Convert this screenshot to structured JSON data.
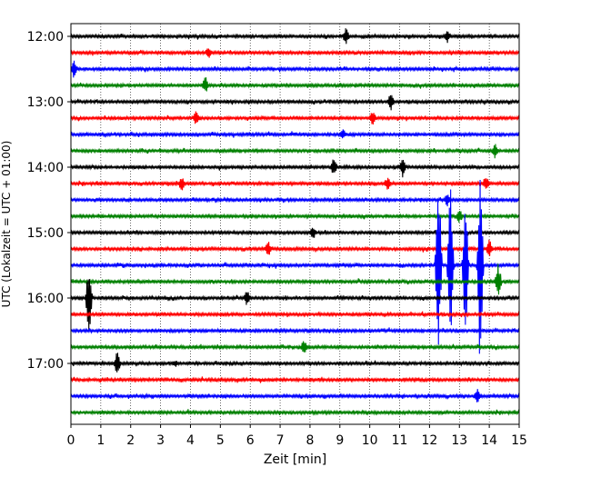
{
  "chart_data": {
    "type": "helicorder",
    "xlabel": "Zeit  [min]",
    "ylabel": "UTC (Lokalzeit = UTC + 01:00)",
    "xlim": [
      0,
      15
    ],
    "x_ticks": [
      "0",
      "1",
      "2",
      "3",
      "4",
      "5",
      "6",
      "7",
      "8",
      "9",
      "10",
      "11",
      "12",
      "13",
      "14",
      "15"
    ],
    "y_ticks": [
      "12:00",
      "13:00",
      "14:00",
      "15:00",
      "16:00",
      "17:00"
    ],
    "trace_start_time": "12:00",
    "trace_interval_min": 15,
    "x_grid": "dotted",
    "trace_colors": [
      "#000000",
      "#ff0000",
      "#0000ff",
      "#008000"
    ],
    "series": [
      {
        "start": "12:00",
        "color": "#000000",
        "events": [
          {
            "x": 9.2,
            "amp": 0.5
          },
          {
            "x": 12.6,
            "amp": 0.35
          }
        ]
      },
      {
        "start": "12:15",
        "color": "#ff0000",
        "events": [
          {
            "x": 4.6,
            "amp": 0.35
          }
        ]
      },
      {
        "start": "12:30",
        "color": "#0000ff",
        "events": [
          {
            "x": 0.1,
            "amp": 0.6
          }
        ]
      },
      {
        "start": "12:45",
        "color": "#008000",
        "events": [
          {
            "x": 4.5,
            "amp": 0.5
          }
        ]
      },
      {
        "start": "13:00",
        "color": "#000000",
        "events": [
          {
            "x": 10.7,
            "amp": 0.55
          }
        ]
      },
      {
        "start": "13:15",
        "color": "#ff0000",
        "events": [
          {
            "x": 4.2,
            "amp": 0.45
          },
          {
            "x": 10.1,
            "amp": 0.45
          }
        ]
      },
      {
        "start": "13:30",
        "color": "#0000ff",
        "events": [
          {
            "x": 9.1,
            "amp": 0.3
          }
        ]
      },
      {
        "start": "13:45",
        "color": "#008000",
        "events": [
          {
            "x": 14.2,
            "amp": 0.45
          }
        ]
      },
      {
        "start": "14:00",
        "color": "#000000",
        "events": [
          {
            "x": 8.8,
            "amp": 0.55
          },
          {
            "x": 11.1,
            "amp": 0.55
          }
        ]
      },
      {
        "start": "14:15",
        "color": "#ff0000",
        "events": [
          {
            "x": 3.7,
            "amp": 0.45
          },
          {
            "x": 10.6,
            "amp": 0.4
          },
          {
            "x": 13.9,
            "amp": 0.55
          }
        ]
      },
      {
        "start": "14:30",
        "color": "#0000ff",
        "events": [
          {
            "x": 12.6,
            "amp": 0.35
          }
        ]
      },
      {
        "start": "14:45",
        "color": "#008000",
        "events": [
          {
            "x": 13.0,
            "amp": 0.4
          }
        ]
      },
      {
        "start": "15:00",
        "color": "#000000",
        "events": [
          {
            "x": 8.1,
            "amp": 0.4
          }
        ]
      },
      {
        "start": "15:15",
        "color": "#ff0000",
        "events": [
          {
            "x": 6.6,
            "amp": 0.5
          },
          {
            "x": 14.0,
            "amp": 0.55
          }
        ]
      },
      {
        "start": "15:30",
        "color": "#0000ff",
        "events": [
          {
            "x": 12.3,
            "amp": 6.5
          },
          {
            "x": 12.7,
            "amp": 5.5
          },
          {
            "x": 13.2,
            "amp": 4.5
          },
          {
            "x": 13.7,
            "amp": 7.0
          }
        ]
      },
      {
        "start": "15:45",
        "color": "#008000",
        "events": [
          {
            "x": 14.3,
            "amp": 1.2
          }
        ]
      },
      {
        "start": "16:00",
        "color": "#000000",
        "events": [
          {
            "x": 0.6,
            "amp": 2.5
          },
          {
            "x": 5.9,
            "amp": 0.5
          }
        ]
      },
      {
        "start": "16:15",
        "color": "#ff0000",
        "events": []
      },
      {
        "start": "16:30",
        "color": "#0000ff",
        "events": []
      },
      {
        "start": "16:45",
        "color": "#008000",
        "events": [
          {
            "x": 7.8,
            "amp": 0.4
          }
        ]
      },
      {
        "start": "17:00",
        "color": "#000000",
        "events": [
          {
            "x": 1.55,
            "amp": 0.7
          },
          {
            "x": 3.5,
            "amp": 0.2
          }
        ]
      },
      {
        "start": "17:15",
        "color": "#ff0000",
        "events": []
      },
      {
        "start": "17:30",
        "color": "#0000ff",
        "events": [
          {
            "x": 13.6,
            "amp": 0.4
          }
        ]
      },
      {
        "start": "17:45",
        "color": "#008000",
        "events": []
      }
    ]
  }
}
